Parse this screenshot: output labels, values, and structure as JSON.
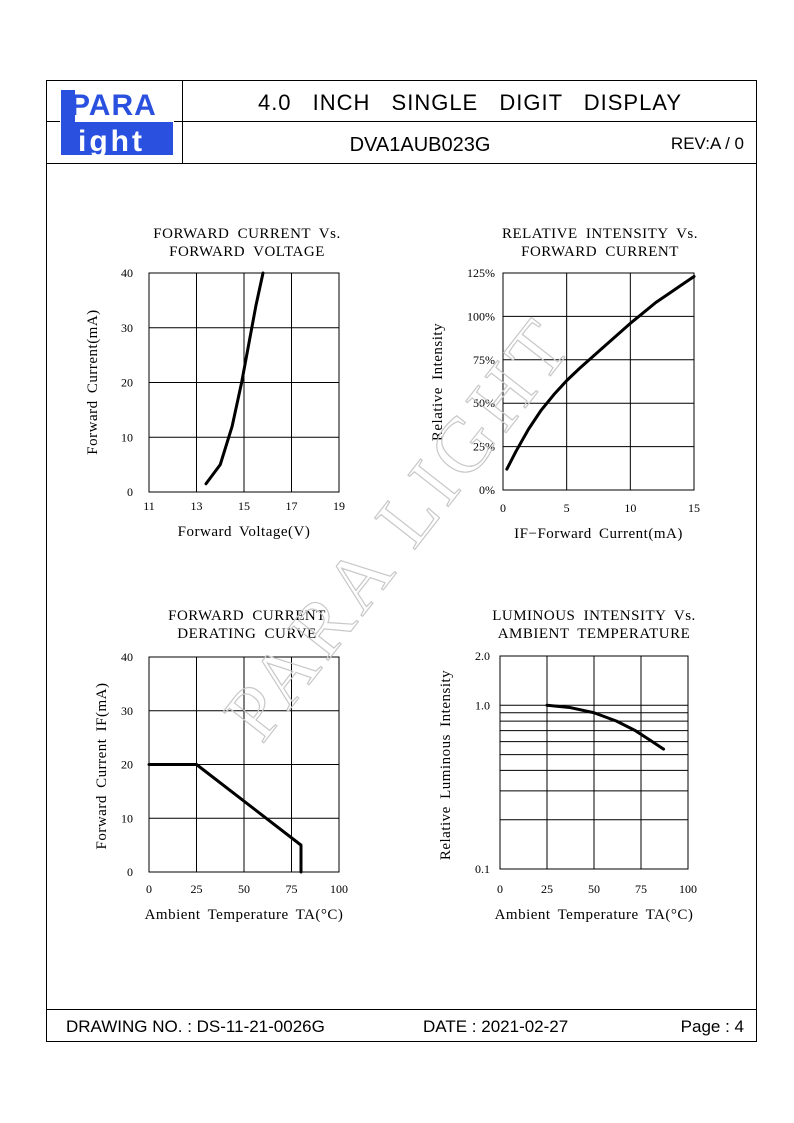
{
  "header": {
    "logo_top": "PARA",
    "logo_bottom": "ight",
    "logo_l": "L",
    "title": "4.0 INCH SINGLE DIGIT DISPLAY",
    "part_number": "DVA1AUB023G",
    "revision": "REV:A / 0"
  },
  "watermark": "PARA LIGHT",
  "footer": {
    "drawing_no": "DRAWING NO. : DS-11-21-0026G",
    "date": "DATE : 2021-02-27",
    "page": "Page : 4"
  },
  "chart_data": [
    {
      "type": "line",
      "title": [
        "FORWARD CURRENT Vs.",
        "FORWARD VOLTAGE"
      ],
      "xlabel": "Forward Voltage(V)",
      "ylabel": "Forward Current(mA)",
      "xlim": [
        11,
        19
      ],
      "ylim": [
        0,
        40
      ],
      "x_ticks": [
        "11",
        "13",
        "15",
        "17",
        "19"
      ],
      "y_ticks": [
        "0",
        "10",
        "20",
        "30",
        "40"
      ],
      "grid": true,
      "series": [
        {
          "x": [
            13.4,
            14.0,
            14.5,
            14.9,
            15.2,
            15.5,
            15.8
          ],
          "y": [
            1.5,
            5,
            12,
            20,
            27,
            34,
            40
          ]
        }
      ]
    },
    {
      "type": "line",
      "title": [
        "RELATIVE INTENSITY Vs.",
        "FORWARD CURRENT"
      ],
      "xlabel": "IF−Forward Current(mA)",
      "ylabel": "Relative Intensity",
      "xlim": [
        0,
        15
      ],
      "ylim": [
        0,
        125
      ],
      "x_ticks": [
        "0",
        "5",
        "10",
        "15"
      ],
      "y_ticks": [
        "0%",
        "25%",
        "50%",
        "75%",
        "100%",
        "125%"
      ],
      "grid": true,
      "series": [
        {
          "x": [
            0.3,
            1,
            2,
            3,
            4,
            5,
            6,
            8,
            10,
            11,
            12,
            13,
            14,
            15
          ],
          "y": [
            12,
            22,
            35,
            46,
            55,
            63,
            70,
            83,
            96,
            102,
            108,
            113,
            118,
            123
          ]
        }
      ]
    },
    {
      "type": "line",
      "title": [
        "FORWARD CURRENT",
        "DERATING CURVE"
      ],
      "xlabel": "Ambient Temperature TA(°C)",
      "ylabel": "Forward Current IF(mA)",
      "xlim": [
        0,
        100
      ],
      "ylim": [
        0,
        40
      ],
      "x_ticks": [
        "0",
        "25",
        "50",
        "75",
        "100"
      ],
      "y_ticks": [
        "0",
        "10",
        "20",
        "30",
        "40"
      ],
      "grid": true,
      "series": [
        {
          "x": [
            0,
            25,
            80,
            80
          ],
          "y": [
            20,
            20,
            5,
            0
          ]
        }
      ]
    },
    {
      "type": "line",
      "title": [
        "LUMINOUS INTENSITY Vs.",
        "AMBIENT TEMPERATURE"
      ],
      "xlabel": "Ambient Temperature TA(°C)",
      "ylabel": "Relative Luminous Intensity",
      "xlim": [
        0,
        100
      ],
      "ylim": [
        0.1,
        2.0
      ],
      "log_y": true,
      "x_ticks": [
        "0",
        "25",
        "50",
        "75",
        "100"
      ],
      "y_ticks": [
        "0.1",
        "1.0",
        "2.0"
      ],
      "grid": true,
      "series": [
        {
          "x": [
            25,
            37,
            50,
            62,
            72,
            80,
            87
          ],
          "y": [
            1.0,
            0.97,
            0.9,
            0.8,
            0.7,
            0.61,
            0.54
          ]
        }
      ]
    }
  ]
}
